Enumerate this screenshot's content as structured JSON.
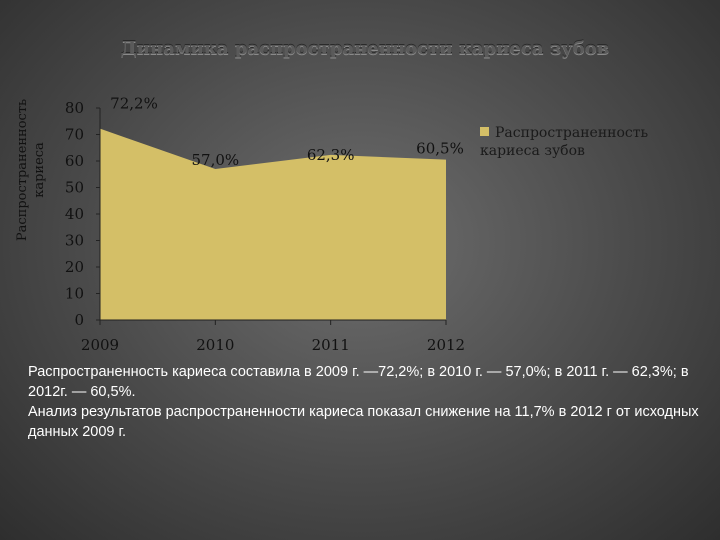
{
  "slide": {
    "title": "Динамика распространенности кариеса зубов",
    "paragraph1": "Распространенность кариеса составила в 2009 г. —72,2%; в 2010 г. — 57,0%; в 2011 г. — 62,3%; в 2012г. — 60,5%.",
    "paragraph2": "Анализ результатов распространенности кариеса показал снижение на 11,7% в 2012 г от исходных данных 2009 г."
  },
  "chart_data": {
    "type": "area",
    "title": "Динамика распространенности кариеса зубов",
    "xlabel": "",
    "ylabel": "Распространенность кариеса",
    "categories": [
      "2009",
      "2010",
      "2011",
      "2012"
    ],
    "series": [
      {
        "name": "Распространенность кариеса зубов",
        "values": [
          72.2,
          57.0,
          62.3,
          60.5
        ],
        "data_labels": [
          "72,2%",
          "57,0%",
          "62,3%",
          "60,5%"
        ],
        "color": "#d4bf67"
      }
    ],
    "ylim": [
      0,
      80
    ],
    "yticks": [
      "0",
      "10",
      "20",
      "30",
      "40",
      "50",
      "60",
      "70",
      "80"
    ],
    "grid": false,
    "legend_position": "right"
  }
}
